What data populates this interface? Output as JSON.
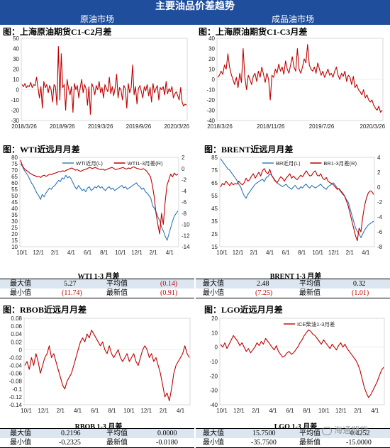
{
  "header": {
    "title": "主要油品价差趋势",
    "left_section": "原油市场",
    "right_section": "成品油市场"
  },
  "panels": {
    "p1": {
      "title": "图：上海原油期货C1-C2月差"
    },
    "p2": {
      "title": "图：上海原油期货C1-C3月差"
    },
    "p3": {
      "title": "图：WTI近远月月差"
    },
    "p4": {
      "title": "图：BRENT近远月月差"
    },
    "p5": {
      "title": "图：RBOB近远月月差"
    },
    "p6": {
      "title": "图：LGO近远月月差"
    }
  },
  "chart_data": [
    {
      "id": "sc_c1c2",
      "type": "line",
      "x_ticks": [
        "2018/3/26",
        "2018/9/26",
        "2019/3/26",
        "2019/9/26",
        "2020/3/26"
      ],
      "y_ticks": [
        50,
        40,
        30,
        20,
        10,
        0,
        -10,
        -20,
        -30
      ],
      "ylim": [
        -30,
        50
      ],
      "series": [
        {
          "color": "#c00000",
          "values": [
            5,
            3,
            6,
            2,
            4,
            3,
            7,
            2,
            5,
            4,
            12,
            2,
            -8,
            3,
            -18,
            8,
            2,
            5,
            -3,
            4,
            0,
            -12,
            5,
            3,
            -15,
            42,
            -10,
            35,
            2,
            5,
            -20,
            10,
            1,
            -5,
            3,
            -22,
            6,
            0,
            4,
            -8,
            2,
            10,
            -3,
            5,
            1,
            -15,
            3,
            -24,
            6,
            2,
            -5,
            4,
            0,
            8,
            -3,
            2,
            -8,
            5,
            1,
            -2,
            12,
            -4,
            3,
            -6,
            2,
            15,
            -8,
            2,
            0,
            -10,
            4,
            1,
            -18,
            6,
            -3,
            2,
            24,
            -5,
            3,
            -14,
            1,
            4,
            -2,
            -8,
            3,
            -1,
            5,
            -6,
            2,
            -12,
            6,
            -3,
            1,
            4,
            -10,
            2,
            0,
            3,
            -5,
            8,
            -4,
            1,
            -2,
            3,
            -8,
            -4,
            -2,
            -6,
            -10,
            2,
            -12,
            -16,
            -14,
            -15
          ]
        }
      ]
    },
    {
      "id": "sc_c1c3",
      "type": "line",
      "x_ticks": [
        "2018/3/26",
        "2018/11/26",
        "2019/7/26",
        "2020/3/26"
      ],
      "y_ticks": [
        40,
        30,
        20,
        10,
        0,
        -10,
        -20,
        -30,
        -40
      ],
      "ylim": [
        -40,
        40
      ],
      "series": [
        {
          "color": "#c00000",
          "values": [
            2,
            4,
            8,
            5,
            14,
            10,
            25,
            12,
            5,
            0,
            -5,
            2,
            -8,
            6,
            -3,
            30,
            2,
            -10,
            4,
            0,
            -5,
            3,
            6,
            -2,
            8,
            2,
            12,
            5,
            -3,
            6,
            0,
            -20,
            4,
            2,
            10,
            6,
            15,
            8,
            12,
            5,
            18,
            10,
            6,
            14,
            22,
            12,
            8,
            30,
            10,
            6,
            12,
            20,
            16,
            34,
            14,
            10,
            8,
            12,
            6,
            16,
            10,
            4,
            8,
            2,
            6,
            10,
            4,
            6,
            2,
            8,
            12,
            4,
            0,
            6,
            3,
            8,
            -2,
            4,
            2,
            -5,
            3,
            -8,
            -5,
            -10,
            -12,
            -15,
            -10,
            -18,
            -15,
            -20,
            -22,
            -20,
            -25,
            -28,
            -30,
            -26,
            -32,
            -30
          ]
        }
      ]
    },
    {
      "id": "wti",
      "type": "line",
      "x_ticks": [
        "10/1",
        "12/1",
        "2/1",
        "4/1",
        "6/1",
        "8/1",
        "10/1",
        "12/1",
        "2/1",
        "4/1"
      ],
      "y_ticks": [
        80,
        75,
        70,
        65,
        60,
        55,
        50,
        45,
        40,
        35,
        30,
        25,
        20,
        15,
        10
      ],
      "y2_ticks": [
        2,
        0,
        -2,
        -4,
        -6,
        -8,
        -10,
        -12,
        -14
      ],
      "ylim": [
        10,
        80
      ],
      "y2lim": [
        -14,
        2
      ],
      "series": [
        {
          "name": "WTI近月(L)",
          "color": "#2e75b6",
          "axis": "left",
          "values": [
            75,
            73,
            70,
            68,
            66,
            63,
            60,
            58,
            55,
            52,
            50,
            47,
            51,
            49,
            52,
            54,
            56,
            55,
            57,
            58,
            60,
            62,
            61,
            64,
            63,
            66,
            64,
            65,
            63,
            60,
            57,
            55,
            58,
            56,
            54,
            55,
            53,
            56,
            57,
            54,
            55,
            57,
            56,
            58,
            56,
            57,
            55,
            54,
            56,
            57,
            55,
            56,
            54,
            55,
            56,
            57,
            58,
            56,
            57,
            55,
            56,
            57,
            58,
            59,
            60,
            58,
            57,
            55,
            56,
            53,
            52,
            50,
            48,
            42,
            40,
            37,
            33,
            30,
            25,
            22,
            18,
            15,
            20,
            25,
            30,
            34,
            36,
            38
          ]
        },
        {
          "name": "WTI1-3月差(R)",
          "color": "#c00000",
          "axis": "right",
          "values": [
            1.5,
            0.5,
            0.0,
            -0.3,
            -0.5,
            -0.8,
            -1.0,
            -1.2,
            -1.3,
            -1.5,
            -1.4,
            -1.6,
            -1.3,
            -1.2,
            -1.4,
            -1.2,
            -1.0,
            -1.1,
            -0.9,
            -0.8,
            -0.7,
            -0.5,
            -0.6,
            -0.4,
            -0.5,
            -0.3,
            -0.2,
            0.0,
            0.1,
            -0.1,
            -0.3,
            -0.2,
            -0.4,
            -0.5,
            -0.3,
            -0.2,
            -0.1,
            0.1,
            0.2,
            0.0,
            0.1,
            0.2,
            0.0,
            -0.1,
            -0.2,
            -0.1,
            -0.3,
            -0.2,
            0.0,
            0.1,
            0.2,
            0.0,
            -0.2,
            -0.1,
            0.0,
            0.1,
            0.2,
            0.0,
            -0.1,
            0.1,
            0.0,
            0.2,
            0.3,
            0.1,
            0.0,
            -0.1,
            -0.2,
            0.0,
            -0.2,
            -0.5,
            -1.0,
            -1.5,
            -3.0,
            -5.0,
            -8.0,
            -10.0,
            -11.7,
            -8.0,
            -10.0,
            -6.0,
            -3.0,
            -2.0,
            -1.0,
            -1.5,
            -0.8,
            -1.2,
            -1.0
          ]
        }
      ]
    },
    {
      "id": "brent",
      "type": "line",
      "x_ticks": [
        "10/1",
        "12/1",
        "2/1",
        "4/1",
        "6/1",
        "8/1",
        "10/1",
        "12/1",
        "2/1",
        "4/1"
      ],
      "y_ticks": [
        85,
        75,
        65,
        55,
        45,
        35,
        25,
        15
      ],
      "y2_ticks": [
        4,
        2,
        0,
        -2,
        -4,
        -6,
        -8
      ],
      "ylim": [
        15,
        85
      ],
      "y2lim": [
        -8,
        4
      ],
      "series": [
        {
          "name": "BR近月(L)",
          "color": "#2e75b6",
          "axis": "left",
          "values": [
            84,
            82,
            80,
            78,
            76,
            75,
            73,
            71,
            69,
            67,
            64,
            62,
            58,
            55,
            53,
            56,
            58,
            60,
            62,
            64,
            65,
            66,
            67,
            68,
            66,
            69,
            70,
            72,
            71,
            69,
            67,
            65,
            64,
            63,
            62,
            63,
            64,
            62,
            61,
            60,
            62,
            63,
            61,
            60,
            62,
            61,
            63,
            64,
            62,
            61,
            63,
            62,
            61,
            62,
            63,
            64,
            62,
            61,
            60,
            62,
            63,
            64,
            65,
            63,
            61,
            60,
            58,
            56,
            55,
            52,
            50,
            45,
            40,
            35,
            30,
            27,
            25,
            22,
            25,
            28,
            30,
            32,
            33,
            34,
            35
          ]
        },
        {
          "name": "BR1-3月差(R)",
          "color": "#c00000",
          "axis": "right",
          "values": [
            0.0,
            0.5,
            0.3,
            0.8,
            0.5,
            0.2,
            0.6,
            0.3,
            0.5,
            0.4,
            0.8,
            0.5,
            0.3,
            0.6,
            1.2,
            0.8,
            1.0,
            1.5,
            1.8,
            1.2,
            1.6,
            2.0,
            1.5,
            2.2,
            2.5,
            2.0,
            1.8,
            2.4,
            1.6,
            1.2,
            0.8,
            0.6,
            1.0,
            1.4,
            1.2,
            0.8,
            1.2,
            1.5,
            1.8,
            1.2,
            1.5,
            1.2,
            1.0,
            1.3,
            1.6,
            1.4,
            1.8,
            2.2,
            1.8,
            1.5,
            1.6,
            2.0,
            2.2,
            1.6,
            1.5,
            1.8,
            1.2,
            1.0,
            1.3,
            0.8,
            0.6,
            0.5,
            0.3,
            0.0,
            -0.3,
            -0.2,
            -0.5,
            -0.8,
            -1.2,
            -1.8,
            -2.5,
            -3.5,
            -4.5,
            -5.5,
            -6.5,
            -7.2,
            -5.5,
            -6.0,
            -4.0,
            -2.5,
            -1.5,
            -0.8,
            -0.5,
            -0.6,
            -1.0
          ]
        }
      ]
    },
    {
      "id": "rbob",
      "type": "line",
      "x_ticks": [
        "10/1",
        "12/1",
        "2/1",
        "4/1",
        "6/1",
        "8/1",
        "10/1",
        "12/1",
        "2/1",
        "4/1"
      ],
      "y_ticks": [
        0.08,
        0.06,
        0.04,
        0.02,
        0,
        -0.02,
        -0.04,
        -0.06,
        -0.08,
        -0.1,
        -0.12,
        -0.14
      ],
      "ylim": [
        -0.14,
        0.08
      ],
      "series": [
        {
          "color": "#c00000",
          "values": [
            -0.04,
            -0.03,
            -0.05,
            -0.02,
            -0.04,
            -0.01,
            -0.03,
            -0.06,
            -0.04,
            -0.02,
            -0.01,
            0.01,
            -0.02,
            -0.01,
            -0.03,
            -0.05,
            -0.07,
            -0.09,
            -0.1,
            -0.08,
            -0.07,
            -0.06,
            -0.04,
            -0.02,
            0.0,
            0.02,
            0.03,
            0.02,
            0.04,
            0.03,
            0.05,
            0.04,
            0.03,
            0.02,
            0.01,
            0.02,
            0.0,
            -0.01,
            0.01,
            -0.01,
            -0.02,
            -0.01,
            0.0,
            -0.02,
            -0.03,
            -0.02,
            -0.01,
            -0.03,
            -0.02,
            -0.01,
            -0.03,
            -0.04,
            -0.02,
            0.0,
            0.01,
            0.0,
            -0.02,
            -0.01,
            -0.03,
            -0.02,
            -0.04,
            -0.06,
            -0.09,
            -0.12,
            -0.11,
            -0.13,
            -0.1,
            -0.06,
            -0.04,
            -0.03,
            -0.02,
            -0.01,
            0.01,
            -0.01,
            -0.02
          ]
        }
      ]
    },
    {
      "id": "lgo",
      "type": "line",
      "x_ticks": [
        "10/1",
        "12/1",
        "2/1",
        "4/1",
        "6/1",
        "8/1",
        "10/1",
        "12/1",
        "2/1",
        "4/1"
      ],
      "y_ticks": [
        20,
        10,
        0,
        -10,
        -20,
        -30,
        -40
      ],
      "ylim": [
        -40,
        20
      ],
      "series": [
        {
          "name": "ICE柴油1-3月差",
          "color": "#c00000",
          "values": [
            2,
            0,
            3,
            -1,
            2,
            5,
            8,
            6,
            4,
            1,
            3,
            0,
            -3,
            -1,
            -4,
            -2,
            0,
            3,
            1,
            4,
            2,
            6,
            4,
            2,
            0,
            -2,
            1,
            -3,
            -5,
            -7,
            -6,
            -4,
            -3,
            -5,
            -4,
            -2,
            0,
            3,
            5,
            8,
            10,
            12,
            11,
            9,
            8,
            6,
            4,
            2,
            5,
            3,
            1,
            -1,
            2,
            0,
            -2,
            1,
            3,
            0,
            2,
            -1,
            -3,
            -5,
            -7,
            -9,
            -12,
            -16,
            -22,
            -28,
            -32,
            -35,
            -33,
            -30,
            -27,
            -24,
            -20,
            -16,
            -14
          ]
        }
      ]
    }
  ],
  "stats": {
    "wti": {
      "title": "WTI 1-3 月差",
      "max_label": "最大值",
      "max": "5.27",
      "avg_label": "平均值",
      "avg": "(0.14)",
      "min_label": "最小值",
      "min": "(11.74)",
      "latest_label": "最新值",
      "latest": "(0.91)"
    },
    "brent": {
      "title": "BRENT 1-3 月差",
      "max_label": "最大值",
      "max": "2.48",
      "avg_label": "平均值",
      "avg": "0.32",
      "min_label": "最小值",
      "min": "(7.25)",
      "latest_label": "最新值",
      "latest": "(1.01)"
    },
    "rbob": {
      "title": "RBOB 1-3 月差",
      "max_label": "最大值",
      "max": "0.2196",
      "avg_label": "平均值",
      "avg": "0.0000",
      "min_label": "最小值",
      "min": "-0.2325",
      "latest_label": "最新值",
      "latest": "-0.0180"
    },
    "lgo": {
      "title": "LGO 1-3 月差",
      "max_label": "最大值",
      "max": "15.7500",
      "avg_label": "平均值",
      "avg": "0.4252",
      "min_label": "最小值",
      "min": "-35.7500",
      "latest_label": "最新值",
      "latest": "-15.0000"
    }
  },
  "watermark": "海通期货"
}
